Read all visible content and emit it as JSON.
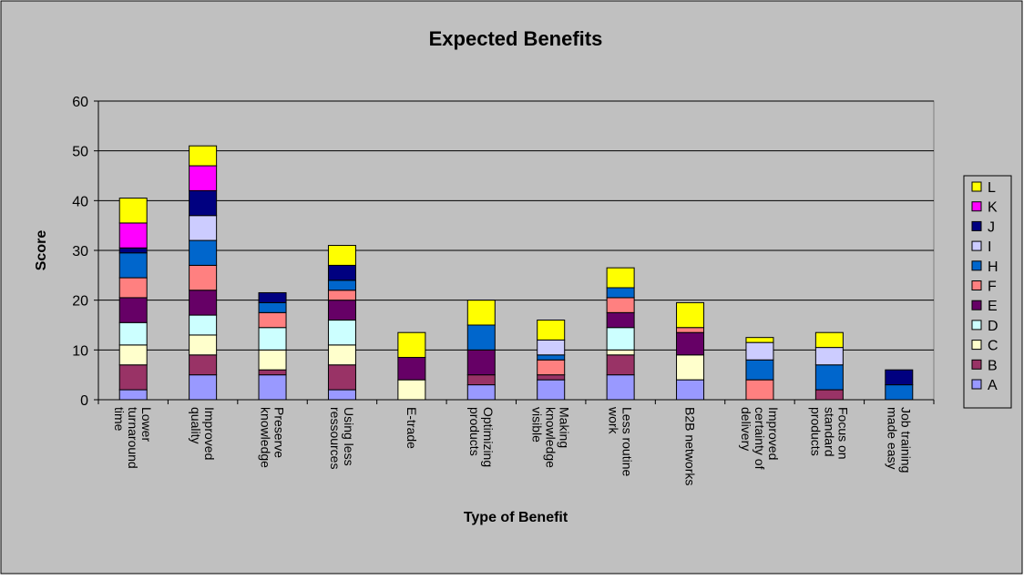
{
  "chart_data": {
    "type": "bar",
    "stacked": true,
    "title": "Expected Benefits",
    "xlabel": "Type of Benefit",
    "ylabel": "Score",
    "ylim": [
      0,
      60
    ],
    "yticks": [
      0,
      10,
      20,
      30,
      40,
      50,
      60
    ],
    "grid": true,
    "legend_position": "right",
    "categories": [
      "Lower turnaround time",
      "Improved quality",
      "Preserve knowledge",
      "Using less ressources",
      "E-trade",
      "Optimizing products",
      "Making knowledge visible",
      "Less routine work",
      "B2B networks",
      "Improved certainty of delivery",
      "Focus on standard products",
      "Job training made easy"
    ],
    "category_lines": [
      [
        "Lower",
        "turnaround",
        "time"
      ],
      [
        "Improved",
        "quality"
      ],
      [
        "Preserve",
        "knowledge"
      ],
      [
        "Using less",
        "ressources"
      ],
      [
        "E-trade"
      ],
      [
        "Optimizing",
        "products"
      ],
      [
        "Making",
        "knowledge",
        "visible"
      ],
      [
        "Less routine",
        "work"
      ],
      [
        "B2B networks"
      ],
      [
        "Improved",
        "certainty of",
        "delivery"
      ],
      [
        "Focus on",
        "standard",
        "products"
      ],
      [
        "Job training",
        "made easy"
      ]
    ],
    "series": [
      {
        "name": "A",
        "color": "#9999FF",
        "values": [
          2,
          5,
          5,
          2,
          0,
          3,
          4,
          5,
          4,
          0,
          0,
          0
        ]
      },
      {
        "name": "B",
        "color": "#993366",
        "values": [
          5,
          4,
          1,
          5,
          0,
          2,
          1,
          4,
          0,
          0,
          2,
          0
        ]
      },
      {
        "name": "C",
        "color": "#FFFFCC",
        "values": [
          4,
          4,
          4,
          4,
          4,
          0,
          0,
          1,
          5,
          0,
          0,
          0
        ]
      },
      {
        "name": "D",
        "color": "#CCFFFF",
        "values": [
          4.5,
          4,
          4.5,
          5,
          0,
          0,
          0,
          4.5,
          0,
          0,
          0,
          0
        ]
      },
      {
        "name": "E",
        "color": "#660066",
        "values": [
          5,
          5,
          0,
          4,
          4.5,
          5,
          0,
          3,
          4.5,
          0,
          0,
          0
        ]
      },
      {
        "name": "F",
        "color": "#FF8080",
        "values": [
          4,
          5,
          3,
          2,
          0,
          0,
          3,
          3,
          1,
          4,
          0,
          0
        ]
      },
      {
        "name": "H",
        "color": "#0066CC",
        "values": [
          5,
          5,
          2,
          2,
          0,
          5,
          1,
          2,
          0,
          4,
          5,
          3
        ]
      },
      {
        "name": "I",
        "color": "#CCCCFF",
        "values": [
          0,
          5,
          0,
          0,
          0,
          0,
          3,
          0,
          0,
          3.5,
          3.5,
          0
        ]
      },
      {
        "name": "J",
        "color": "#000080",
        "values": [
          1,
          5,
          2,
          3,
          0,
          0,
          0,
          0,
          0,
          0,
          0,
          3
        ]
      },
      {
        "name": "K",
        "color": "#FF00FF",
        "values": [
          5,
          5,
          0,
          0,
          0,
          0,
          0,
          0,
          0,
          0,
          0,
          0
        ]
      },
      {
        "name": "L",
        "color": "#FFFF00",
        "values": [
          5,
          4,
          0,
          4,
          5,
          5,
          4,
          4,
          5,
          1,
          3,
          0
        ]
      }
    ]
  }
}
